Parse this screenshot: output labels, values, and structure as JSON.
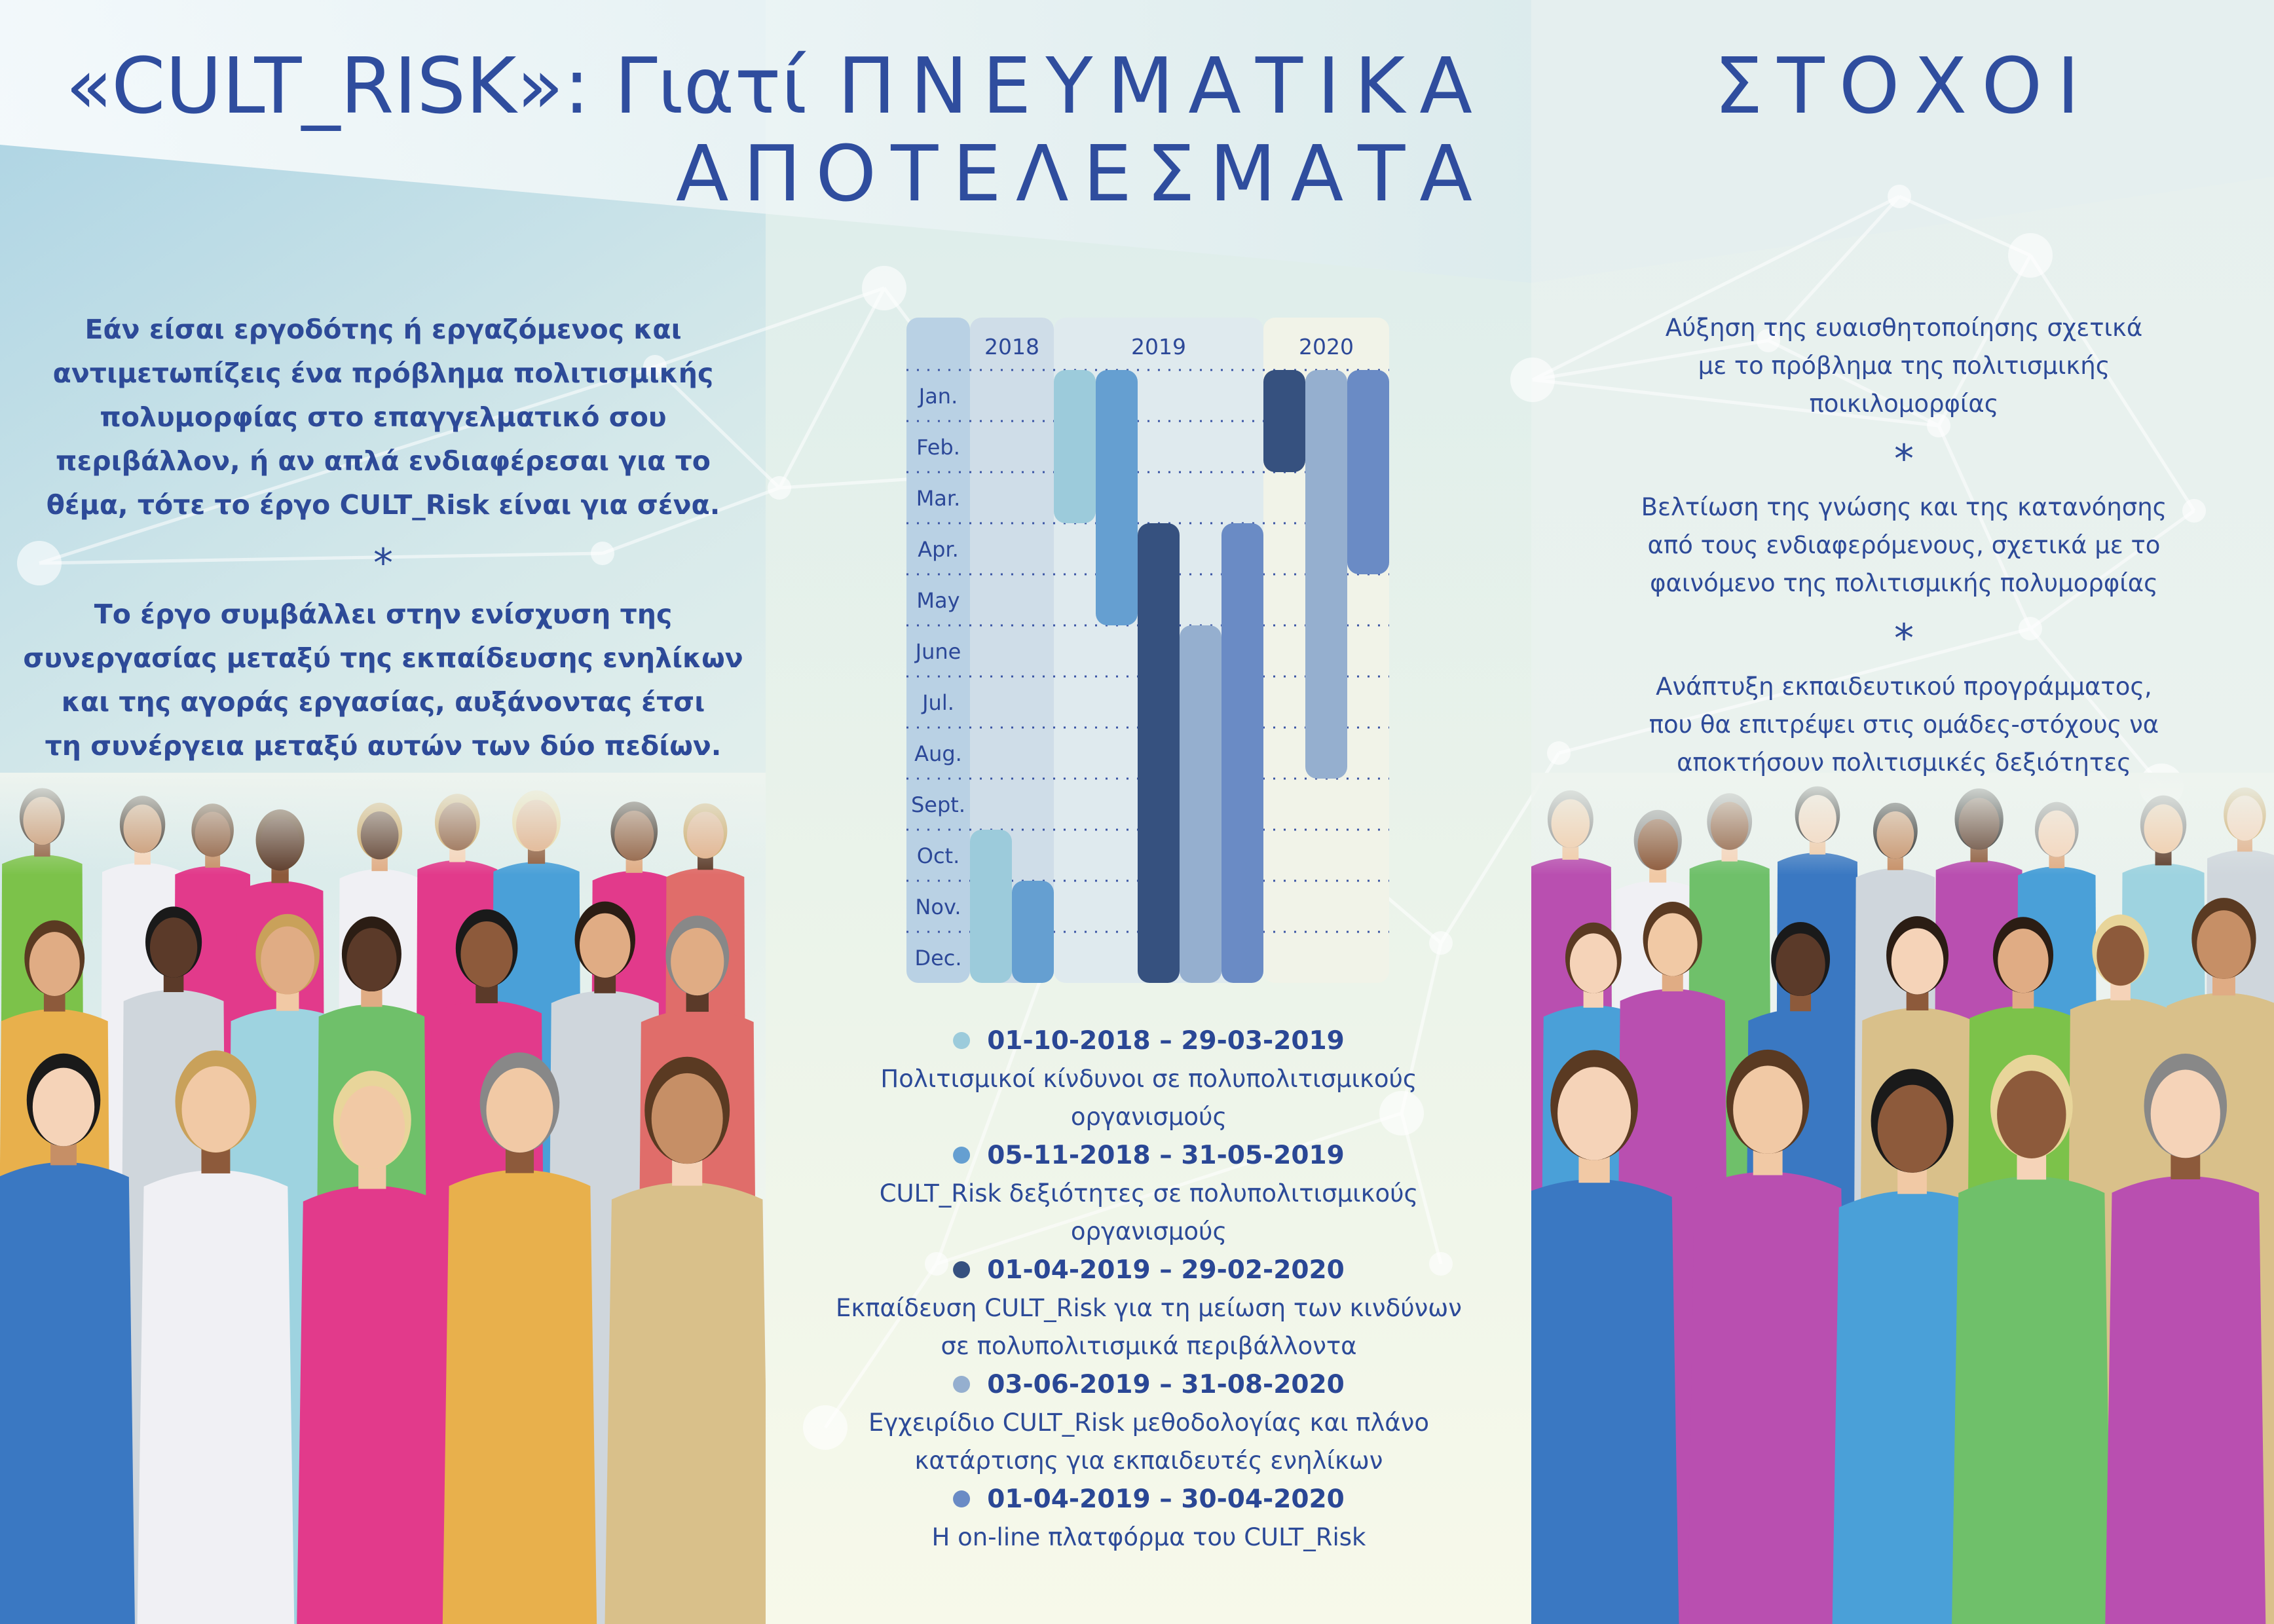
{
  "titles": {
    "left": "«CULT_RISK»: Γιατί",
    "middle_line1": "ΠΝΕΥΜΑΤΙΚΑ",
    "middle_line2": "ΑΠΟΤΕΛΕΣΜΑΤΑ",
    "right": "ΣΤΟΧΟΙ"
  },
  "left_panel": {
    "paragraph1": [
      "Εάν είσαι εργοδότης ή εργαζόμενος και",
      "αντιμετωπίζεις ένα πρόβλημα πολιτισμικής",
      "πολυμορφίας στο επαγγελματικό σου",
      "περιβάλλον, ή αν απλά ενδιαφέρεσαι για το",
      "θέμα, τότε το έργο CULT_Risk είναι για σένα."
    ],
    "separator": "*",
    "paragraph2": [
      "Το έργο συμβάλλει στην ενίσχυση της",
      "συνεργασίας μεταξύ της εκπαίδευσης ενηλίκων",
      "και της αγοράς εργασίας, αυξάνοντας έτσι",
      "τη συνέργεια μεταξύ αυτών των δύο πεδίων."
    ]
  },
  "right_panel": {
    "goal1": [
      "Αύξηση της ευαισθητοποίησης σχετικά",
      "με το πρόβλημα της πολιτισμικής",
      "ποικιλομορφίας"
    ],
    "goal2": [
      "Βελτίωση της γνώσης και της κατανόησης",
      "από τους ενδιαφερόμενους, σχετικά με το",
      "φαινόμενο της πολιτισμικής πολυμορφίας"
    ],
    "goal3": [
      "Ανάπτυξη εκπαιδευτικού προγράμματος,",
      "που θα επιτρέψει στις ομάδες-στόχους να",
      "αποκτήσουν πολιτισμικές δεξιότητες"
    ],
    "separator": "*"
  },
  "chart_data": {
    "type": "gantt",
    "years": [
      "2018",
      "2019",
      "2020"
    ],
    "months": [
      "Jan.",
      "Feb.",
      "Mar.",
      "Apr.",
      "May",
      "June",
      "Jul.",
      "Aug.",
      "Sept.",
      "Oct.",
      "Nov.",
      "Dec."
    ],
    "year_colors": {
      "labels": "#b9d1e4",
      "2018": "#cfdde8",
      "2019": "#dfeaee",
      "2020": "#f1f3e8"
    },
    "series": [
      {
        "start": "2018-10",
        "end": "2019-03",
        "color": "#9ccbdb",
        "dates": "01-10-2018 – 29-03-2019",
        "description": [
          "Πολιτισμικοί κίνδυνοι σε πολυπολιτισμικούς",
          "οργανισμούς"
        ]
      },
      {
        "start": "2018-11",
        "end": "2019-05",
        "color": "#659fd1",
        "dates": "05-11-2018 – 31-05-2019",
        "description": [
          "CULT_Risk δεξιότητες σε πολυπολιτισμικούς",
          "οργανισμούς"
        ]
      },
      {
        "start": "2019-04",
        "end": "2020-02",
        "color": "#36517f",
        "dates": "01-04-2019 – 29-02-2020",
        "description": [
          "Εκπαίδευση CULT_Risk για τη μείωση των κινδύνων",
          "σε πολυπολιτισμικά περιβάλλοντα"
        ]
      },
      {
        "start": "2019-06",
        "end": "2020-08",
        "color": "#95afcf",
        "dates": "03-06-2019 – 31-08-2020",
        "description": [
          "Εγχειρίδιο CULT_Risk μεθοδολογίας και πλάνο",
          "κατάρτισης για εκπαιδευτές ενηλίκων"
        ]
      },
      {
        "start": "2019-04",
        "end": "2020-04",
        "color": "#6a8bc5",
        "dates": "01-04-2019 – 30-04-2020",
        "description": [
          "Η on-line πλατφόρμα του CULT_Risk"
        ]
      }
    ]
  },
  "colors": {
    "text": "#2c4898",
    "accent": "#2f4d9e"
  }
}
